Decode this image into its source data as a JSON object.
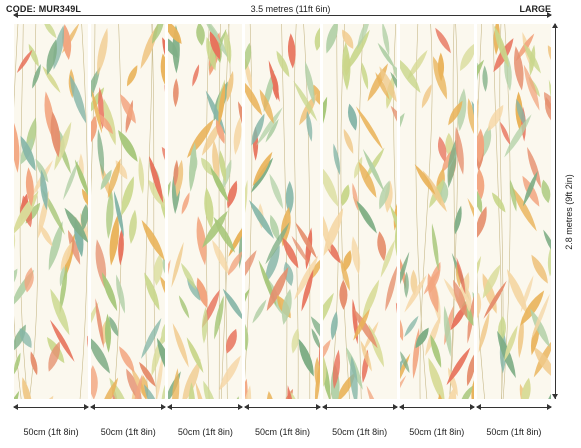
{
  "product": {
    "code_label": "CODE: MUR349L",
    "size_label": "LARGE"
  },
  "dimensions": {
    "total_width": "3.5 metres (11ft 6in)",
    "total_height": "2.8 metres (9ft 2in)",
    "panel_width": "50cm (1ft 8in)"
  },
  "panels": [
    {
      "label": "50cm (1ft 8in)"
    },
    {
      "label": "50cm (1ft 8in)"
    },
    {
      "label": "50cm (1ft 8in)"
    },
    {
      "label": "50cm (1ft 8in)"
    },
    {
      "label": "50cm (1ft 8in)"
    },
    {
      "label": "50cm (1ft 8in)"
    },
    {
      "label": "50cm (1ft 8in)"
    }
  ],
  "colors": {
    "background": "#fbf8ee",
    "leaf_palette": [
      "#e9b35a",
      "#f0c98a",
      "#a7c77a",
      "#7fae86",
      "#e7735c",
      "#f2a57f",
      "#c9d78c",
      "#86b6a8",
      "#d9dc9a",
      "#e58f6e",
      "#b3d1a8",
      "#f5d7a6"
    ]
  }
}
